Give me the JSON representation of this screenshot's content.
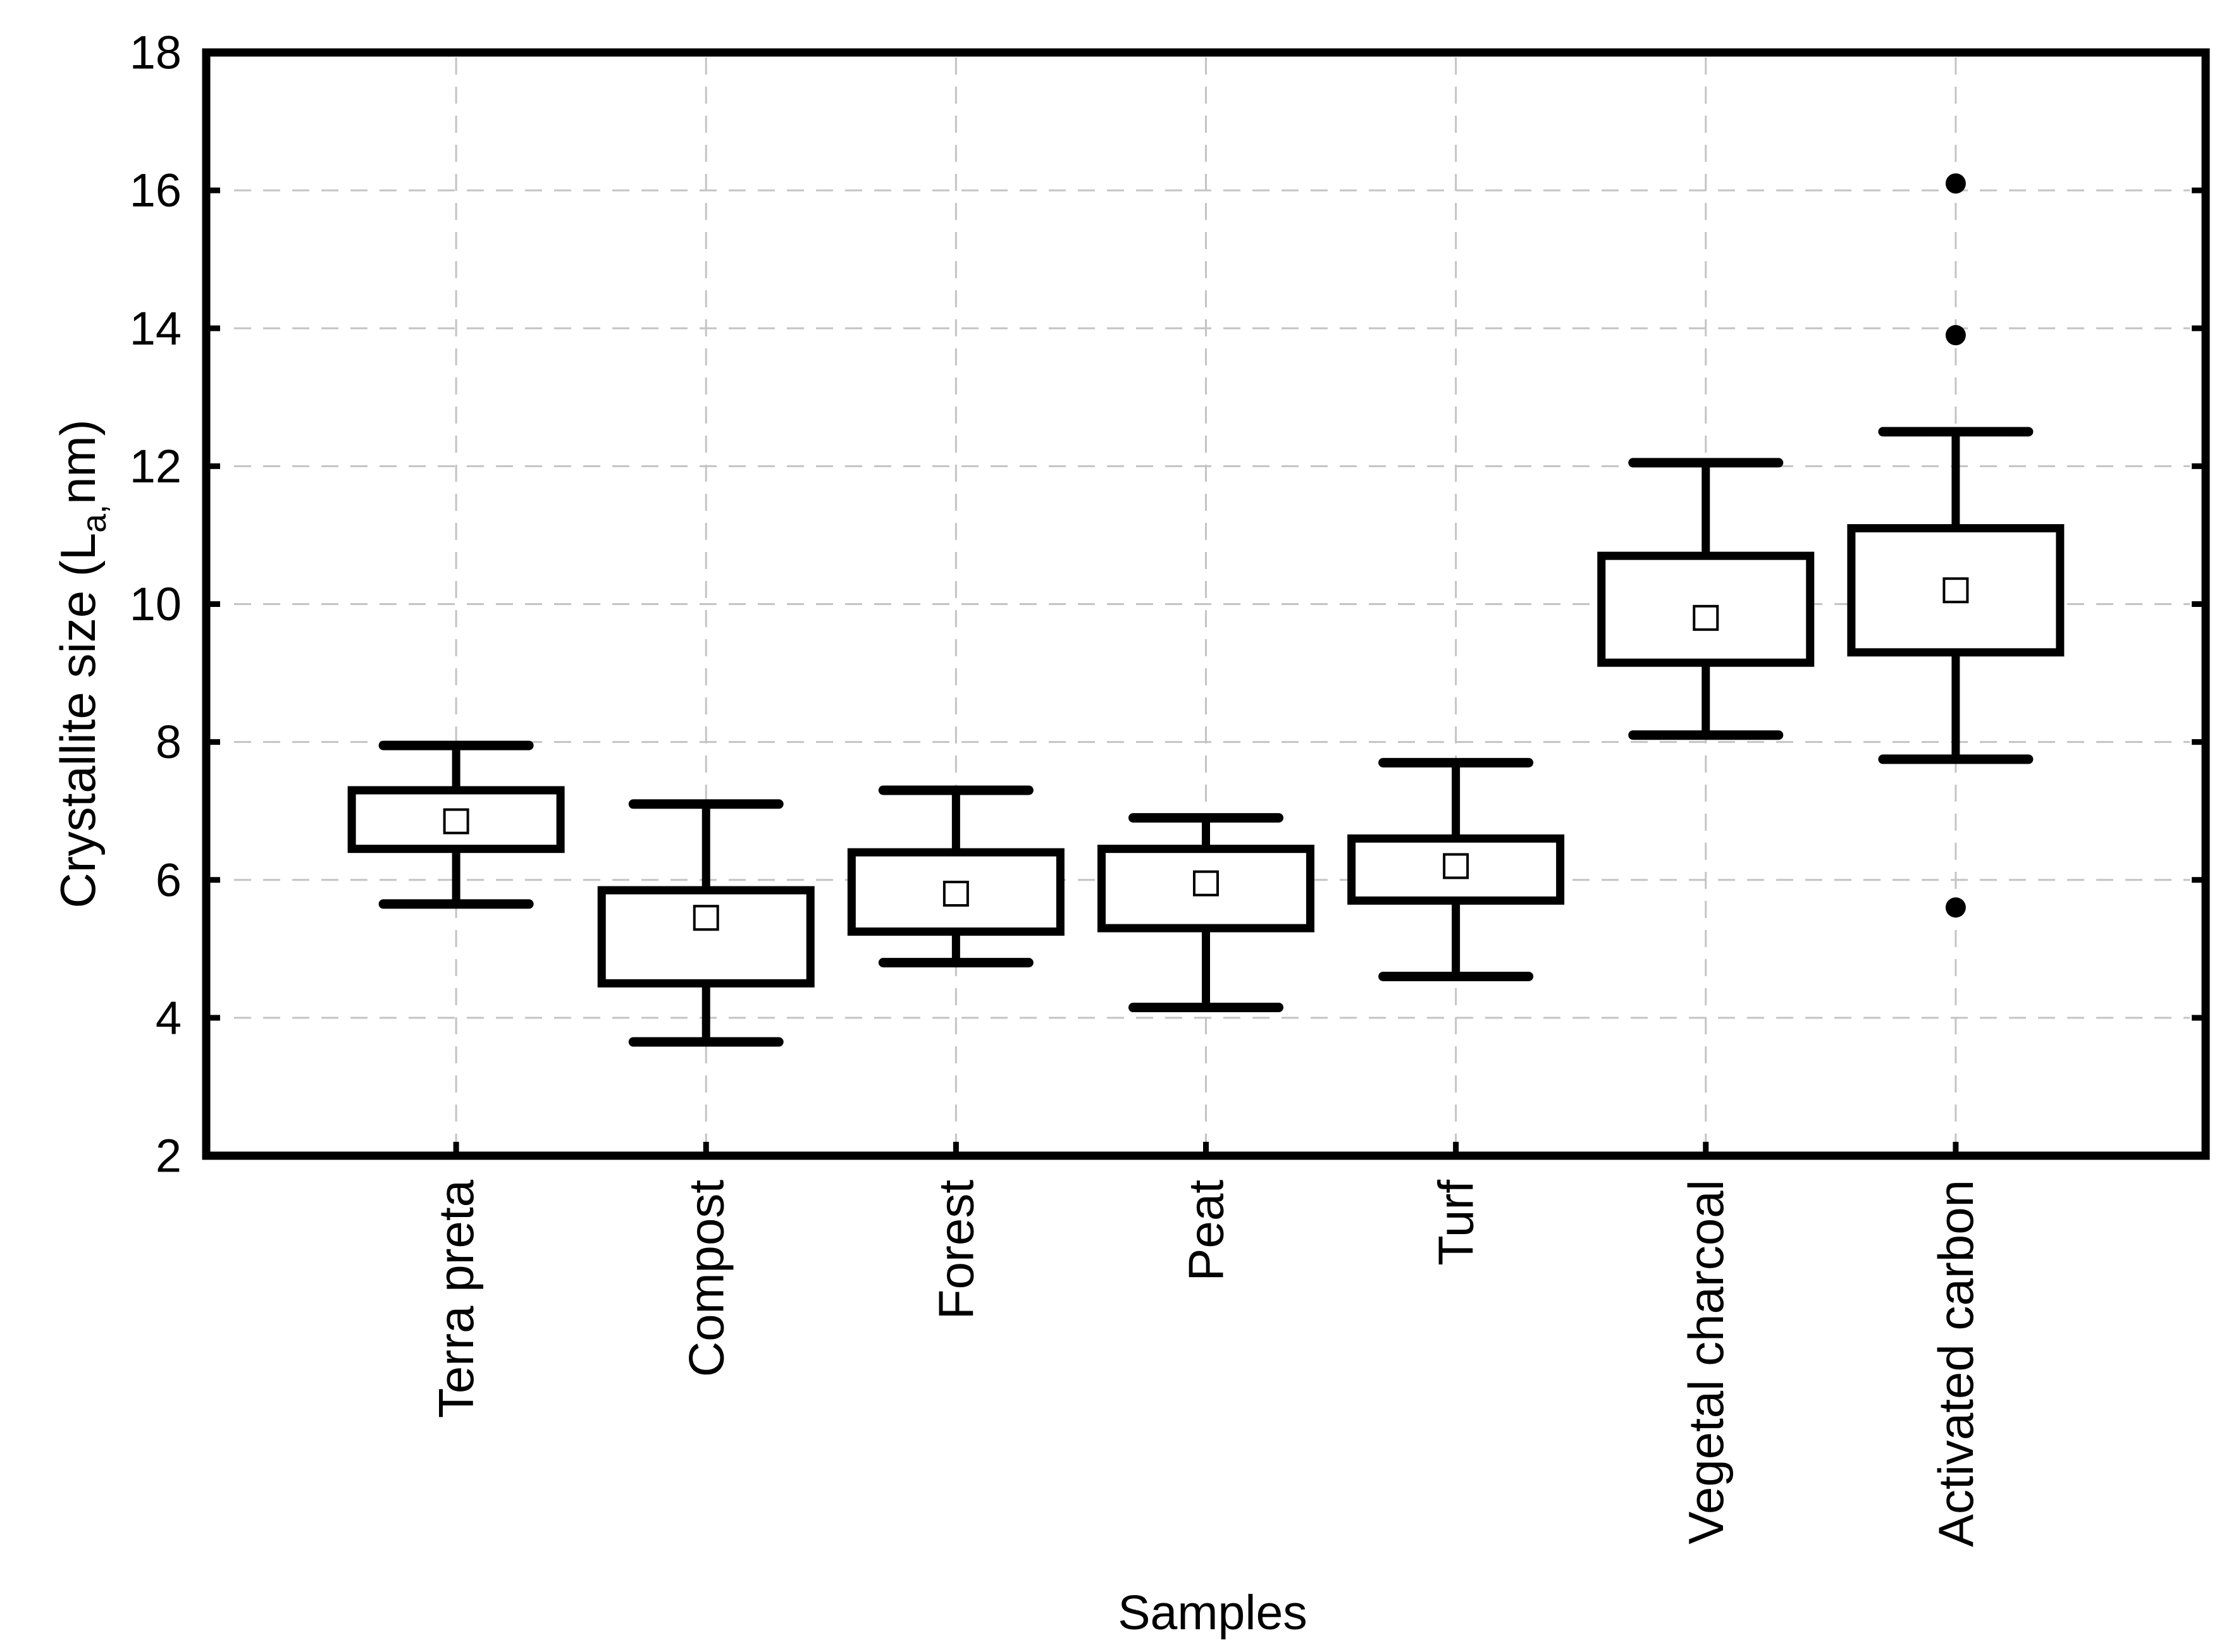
{
  "chart_data": {
    "type": "box",
    "title": "",
    "xlabel": "Samples",
    "ylabel": {
      "prefix": "Crystallite size (L",
      "sub": "a,",
      "suffix": "nm)"
    },
    "ylim": [
      2,
      18
    ],
    "yticks": [
      2,
      4,
      6,
      8,
      10,
      12,
      14,
      16,
      18
    ],
    "grid_values": [
      4,
      6,
      8,
      10,
      12,
      14,
      16
    ],
    "grid_style": "dashed",
    "legend": null,
    "categories": [
      "Terra preta",
      "Compost",
      "Forest",
      "Peat",
      "Turf",
      "Vegetal charcoal",
      "Activated carbon"
    ],
    "series": [
      {
        "name": "Terra preta",
        "whisker_low": 5.65,
        "q1": 6.45,
        "mean": 6.85,
        "q3": 7.3,
        "whisker_high": 7.95,
        "outliers": []
      },
      {
        "name": "Compost",
        "whisker_low": 3.65,
        "q1": 4.5,
        "mean": 5.45,
        "q3": 5.85,
        "whisker_high": 7.1,
        "outliers": []
      },
      {
        "name": "Forest",
        "whisker_low": 4.8,
        "q1": 5.25,
        "mean": 5.8,
        "q3": 6.4,
        "whisker_high": 7.3,
        "outliers": []
      },
      {
        "name": "Peat",
        "whisker_low": 4.15,
        "q1": 5.3,
        "mean": 5.95,
        "q3": 6.45,
        "whisker_high": 6.9,
        "outliers": []
      },
      {
        "name": "Turf",
        "whisker_low": 4.6,
        "q1": 5.7,
        "mean": 6.2,
        "q3": 6.6,
        "whisker_high": 7.7,
        "outliers": []
      },
      {
        "name": "Vegetal charcoal",
        "whisker_low": 8.1,
        "q1": 9.15,
        "mean": 9.8,
        "q3": 10.7,
        "whisker_high": 12.05,
        "outliers": []
      },
      {
        "name": "Activated carbon",
        "whisker_low": 7.75,
        "q1": 9.3,
        "mean": 10.2,
        "q3": 11.1,
        "whisker_high": 12.5,
        "outliers": [
          16.1,
          13.9,
          5.6
        ]
      }
    ],
    "marker_meaning": "mean-square",
    "colors": {
      "stroke": "#000000",
      "grid": "#c4c4c4",
      "background": "#ffffff",
      "box_fill": "#ffffff",
      "mean_fill": "#ffffff",
      "outlier_fill": "#000000"
    }
  }
}
